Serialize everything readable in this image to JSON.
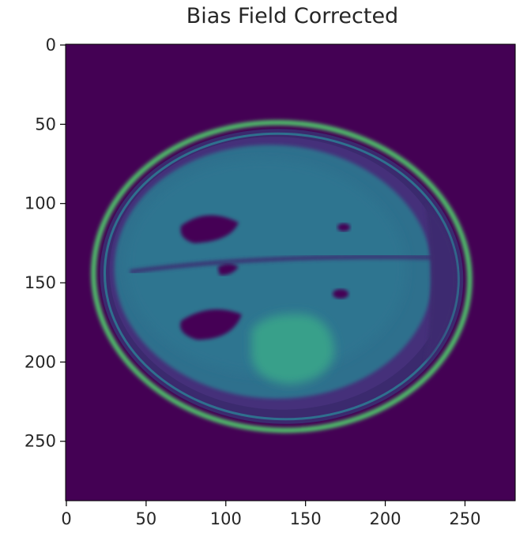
{
  "chart_data": {
    "type": "image",
    "title": "Bias Field Corrected",
    "xlim": [
      -0.5,
      281.5
    ],
    "ylim": [
      287.5,
      -0.5
    ],
    "xticks": [
      0,
      50,
      100,
      150,
      200,
      250
    ],
    "yticks": [
      0,
      50,
      100,
      150,
      200,
      250
    ]
  }
}
